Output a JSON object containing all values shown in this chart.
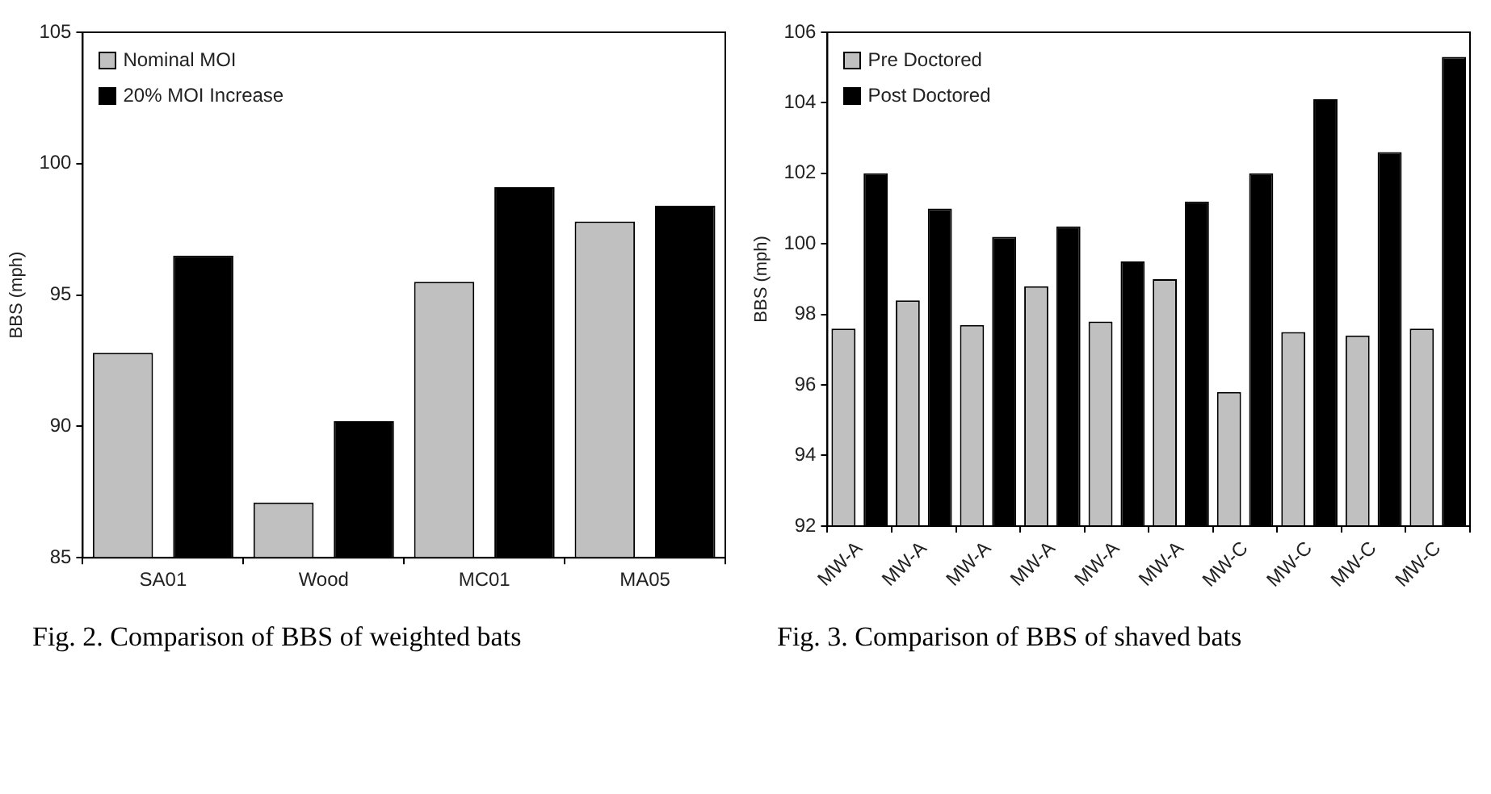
{
  "chart_data": [
    {
      "type": "bar",
      "ylabel": "BBS (mph)",
      "categories": [
        "SA01",
        "Wood",
        "MC01",
        "MA05"
      ],
      "series": [
        {
          "name": "Nominal MOI",
          "color": "#c0c0c0",
          "values": [
            92.8,
            87.1,
            95.5,
            97.8
          ]
        },
        {
          "name": "20% MOI Increase",
          "color": "#000000",
          "values": [
            96.5,
            90.2,
            99.1,
            98.4
          ]
        }
      ],
      "ylim": [
        85,
        105
      ],
      "yticks": [
        85,
        90,
        95,
        100,
        105
      ],
      "grid": false,
      "legend": "top left",
      "annotations": [
        "Fig. 2. Comparison of BBS of weighted bats"
      ]
    },
    {
      "type": "bar",
      "ylabel": "BBS (mph)",
      "categories": [
        "MW-A",
        "MW-A",
        "MW-A",
        "MW-A",
        "MW-A",
        "MW-A",
        "MW-C",
        "MW-C",
        "MW-C",
        "MW-C"
      ],
      "series": [
        {
          "name": "Pre Doctored",
          "color": "#c0c0c0",
          "values": [
            97.6,
            98.4,
            97.7,
            98.8,
            97.8,
            99.0,
            95.8,
            97.5,
            97.4,
            97.6
          ]
        },
        {
          "name": "Post Doctored",
          "color": "#000000",
          "values": [
            102.0,
            101.0,
            100.2,
            100.5,
            99.5,
            101.2,
            102.0,
            104.1,
            102.6,
            105.3
          ]
        }
      ],
      "ylim": [
        92,
        106
      ],
      "yticks": [
        92,
        94,
        96,
        98,
        100,
        102,
        104,
        106
      ],
      "grid": false,
      "legend": "top left",
      "annotations": [
        "Fig. 3. Comparison of BBS of shaved bats"
      ]
    }
  ]
}
